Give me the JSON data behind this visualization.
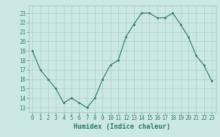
{
  "x": [
    0,
    1,
    2,
    3,
    4,
    5,
    6,
    7,
    8,
    9,
    10,
    11,
    12,
    13,
    14,
    15,
    16,
    17,
    18,
    19,
    20,
    21,
    22,
    23
  ],
  "y": [
    19,
    17,
    16,
    15,
    13.5,
    14,
    13.5,
    13,
    14,
    16,
    17.5,
    18,
    20.5,
    21.8,
    23,
    23,
    22.5,
    22.5,
    23,
    21.8,
    20.5,
    18.5,
    17.5,
    15.8
  ],
  "xlabel": "Humidex (Indice chaleur)",
  "ylim": [
    12.5,
    23.8
  ],
  "xlim": [
    -0.5,
    23.5
  ],
  "yticks": [
    13,
    14,
    15,
    16,
    17,
    18,
    19,
    20,
    21,
    22,
    23
  ],
  "xticks": [
    0,
    1,
    2,
    3,
    4,
    5,
    6,
    7,
    8,
    9,
    10,
    11,
    12,
    13,
    14,
    15,
    16,
    17,
    18,
    19,
    20,
    21,
    22,
    23
  ],
  "line_color": "#2d7a6a",
  "bg_color": "#cce8e4",
  "grid_color": "#a8ccc8",
  "font_color": "#2d7a6a",
  "tick_fontsize": 5.5,
  "xlabel_fontsize": 7.0
}
